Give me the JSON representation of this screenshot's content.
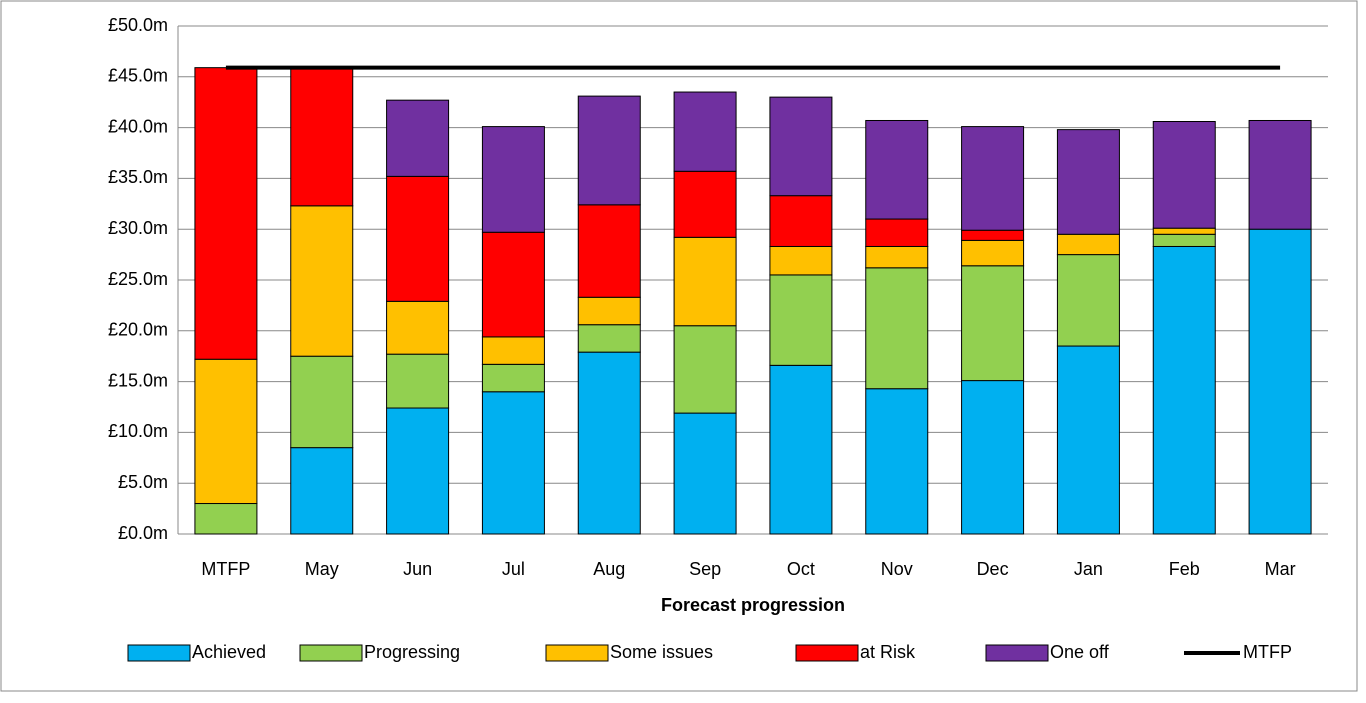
{
  "chart_data": {
    "type": "stacked-bar-line",
    "x_label": "Forecast progression",
    "categories": [
      "MTFP",
      "May",
      "Jun",
      "Jul",
      "Aug",
      "Sep",
      "Oct",
      "Nov",
      "Dec",
      "Jan",
      "Feb",
      "Mar"
    ],
    "series": [
      {
        "name": "Achieved",
        "color": "#00b0f0",
        "values": [
          0,
          8.5,
          12.4,
          14.0,
          17.9,
          11.9,
          16.6,
          14.3,
          15.1,
          18.5,
          28.3,
          30.0
        ]
      },
      {
        "name": "Progressing",
        "color": "#92d050",
        "values": [
          3.0,
          9.0,
          5.3,
          2.7,
          2.7,
          8.6,
          8.9,
          11.9,
          11.3,
          9.0,
          1.2,
          0
        ]
      },
      {
        "name": "Some issues",
        "color": "#ffc000",
        "values": [
          14.2,
          14.8,
          5.2,
          2.7,
          2.7,
          8.7,
          2.8,
          2.1,
          2.5,
          2.0,
          0.6,
          0
        ]
      },
      {
        "name": "at Risk",
        "color": "#ff0000",
        "values": [
          28.7,
          13.6,
          12.3,
          10.3,
          9.1,
          6.5,
          5.0,
          2.7,
          1.0,
          0,
          0,
          0
        ]
      },
      {
        "name": "One off",
        "color": "#7030a0",
        "values": [
          0,
          0,
          7.5,
          10.4,
          10.7,
          7.8,
          9.7,
          9.7,
          10.2,
          10.3,
          10.5,
          10.7
        ]
      }
    ],
    "line": {
      "name": "MTFP",
      "color": "#000000",
      "values": [
        45.9,
        45.9,
        45.9,
        45.9,
        45.9,
        45.9,
        45.9,
        45.9,
        45.9,
        45.9,
        45.9,
        45.9
      ]
    },
    "ylim": [
      0,
      50
    ],
    "yticks": [
      {
        "value": 0,
        "label": "£0.0m"
      },
      {
        "value": 5,
        "label": "£5.0m"
      },
      {
        "value": 10,
        "label": "£10.0m"
      },
      {
        "value": 15,
        "label": "£15.0m"
      },
      {
        "value": 20,
        "label": "£20.0m"
      },
      {
        "value": 25,
        "label": "£25.0m"
      },
      {
        "value": 30,
        "label": "£30.0m"
      },
      {
        "value": 35,
        "label": "£35.0m"
      },
      {
        "value": 40,
        "label": "£40.0m"
      },
      {
        "value": 45,
        "label": "£45.0m"
      },
      {
        "value": 50,
        "label": "£50.0m"
      }
    ],
    "grid": true
  }
}
